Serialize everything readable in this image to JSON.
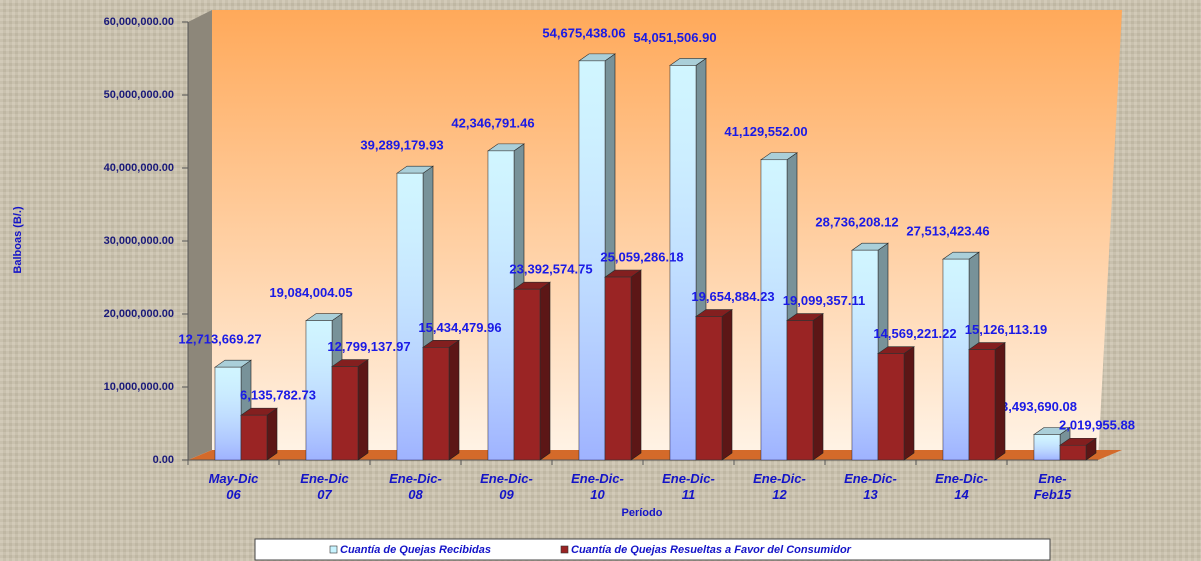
{
  "chart_data": {
    "type": "bar3d",
    "y_label": "Balboas (B/.)",
    "x_label": "Período",
    "categories": [
      "May-Dic 06",
      "Ene-Dic 07",
      "Ene-Dic- 08",
      "Ene-Dic- 09",
      "Ene-Dic- 10",
      "Ene-Dic- 11",
      "Ene-Dic- 12",
      "Ene-Dic- 13",
      "Ene-Dic- 14",
      "Ene- Feb15"
    ],
    "series": [
      {
        "name": "Cuantía de Quejas Recibidas",
        "color": "#c8f4ff",
        "values": [
          12713669.27,
          19084004.05,
          39289179.93,
          42346791.46,
          54675438.06,
          54051506.9,
          41129552.0,
          28736208.12,
          27513423.46,
          3493690.08
        ],
        "value_labels": [
          "12,713,669.27",
          "19,084,004.05",
          "39,289,179.93",
          "42,346,791.46",
          "54,675,438.06",
          "54,051,506.90",
          "41,129,552.00",
          "28,736,208.12",
          "27,513,423.46",
          "3,493,690.08"
        ]
      },
      {
        "name": "Cuantía de Quejas Resueltas a Favor del Consumidor",
        "color": "#9a2424",
        "values": [
          6135782.73,
          12799137.97,
          15434479.96,
          23392574.75,
          25059286.18,
          19654884.23,
          19099357.11,
          14569221.22,
          15126113.19,
          2019955.88
        ],
        "value_labels": [
          "6,135,782.73",
          "12,799,137.97",
          "15,434,479.96",
          "23,392,574.75",
          "25,059,286.18",
          "19,654,884.23",
          "19,099,357.11",
          "14,569,221.22",
          "15,126,113.19",
          "2,019,955.88"
        ]
      }
    ],
    "ylim": [
      0,
      60000000
    ],
    "yticks": [
      {
        "value": 0,
        "label": "0.00"
      },
      {
        "value": 10000000,
        "label": "10,000,000.00"
      },
      {
        "value": 20000000,
        "label": "20,000,000.00"
      },
      {
        "value": 30000000,
        "label": "30,000,000.00"
      },
      {
        "value": 40000000,
        "label": "40,000,000.00"
      },
      {
        "value": 50000000,
        "label": "50,000,000.00"
      },
      {
        "value": 60000000,
        "label": "60,000,000.00"
      }
    ],
    "grid": false
  }
}
